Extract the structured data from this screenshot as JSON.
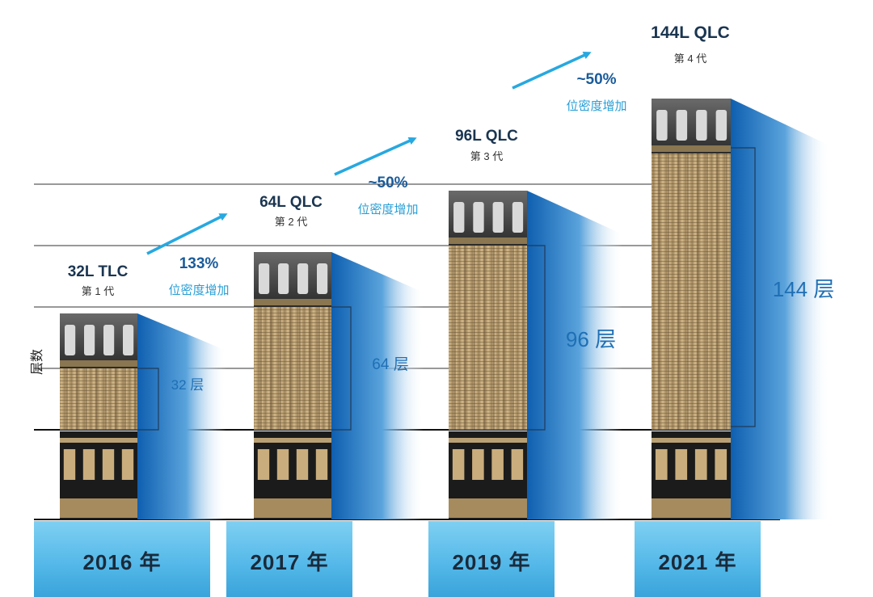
{
  "y_axis_label": "层数",
  "generations": [
    {
      "title": "32L TLC",
      "subtitle": "第 1 代",
      "layer_label": "32 层",
      "year": "2016 年",
      "layers": 32
    },
    {
      "title": "64L QLC",
      "subtitle": "第 2 代",
      "layer_label": "64 层",
      "year": "2017 年",
      "layers": 64
    },
    {
      "title": "96L QLC",
      "subtitle": "第 3 代",
      "layer_label": "96 层",
      "year": "2019 年",
      "layers": 96
    },
    {
      "title": "144L QLC",
      "subtitle": "第 4 代",
      "layer_label": "144 层",
      "year": "2021 年",
      "layers": 144
    }
  ],
  "growth": [
    {
      "percent": "133%",
      "text": "位密度增加"
    },
    {
      "percent": "~50%",
      "text": "位密度增加"
    },
    {
      "percent": "~50%",
      "text": "位密度增加"
    }
  ],
  "colors": {
    "accent_blue": "#1f6fb5",
    "arrow_cyan": "#27a8e0",
    "year_band": "#6fc6ee",
    "stack_gold": "#c6a979",
    "title_navy": "#1a3550"
  }
}
